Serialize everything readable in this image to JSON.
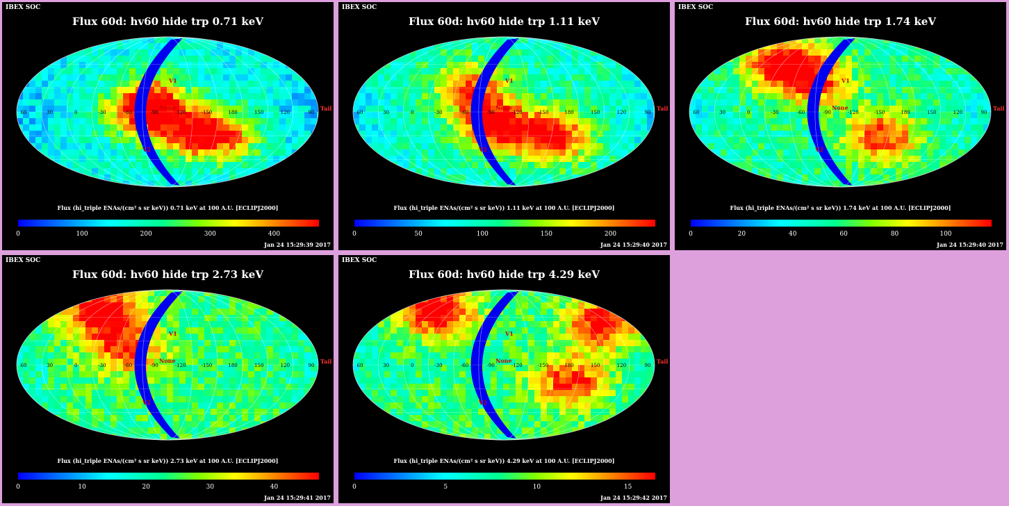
{
  "panels": [
    {
      "org": "IBEX SOC",
      "title": "Flux 60d: hv60 hide trp 0.71 keV",
      "colorbar_label": "Flux (hi_triple ENAs/(cm² s sr keV)) 0.71 keV at 100 A.U. [ECLIPJ2000]",
      "ticks": [
        "0",
        "100",
        "200",
        "300",
        "400"
      ],
      "tick_max": 470,
      "timestamp": "Jan 24 15:29:39 2017",
      "hotspots": [
        {
          "lon": -60,
          "lat": 0,
          "amp": 0.85
        },
        {
          "lon": -120,
          "lat": -25,
          "amp": 0.8
        },
        {
          "lon": -160,
          "lat": -30,
          "amp": 0.6
        },
        {
          "lon": -75,
          "lat": 20,
          "amp": 0.5
        }
      ],
      "base": 0.35
    },
    {
      "org": "IBEX SOC",
      "title": "Flux 60d: hv60 hide trp 1.11 keV",
      "colorbar_label": "Flux (hi_triple ENAs/(cm² s sr keV)) 1.11 keV at 100 A.U. [ECLIPJ2000]",
      "ticks": [
        "0",
        "50",
        "100",
        "150",
        "200"
      ],
      "tick_max": 235,
      "timestamp": "Jan 24 15:29:40 2017",
      "hotspots": [
        {
          "lon": -80,
          "lat": -15,
          "amp": 0.95
        },
        {
          "lon": -150,
          "lat": -30,
          "amp": 0.95
        },
        {
          "lon": -50,
          "lat": 30,
          "amp": 0.75
        }
      ],
      "base": 0.4
    },
    {
      "org": "IBEX SOC",
      "title": "Flux 60d: hv60 hide trp 1.74 keV",
      "colorbar_label": "Flux (hi_triple ENAs/(cm² s sr keV)) 1.74 keV at 100 A.U. [ECLIPJ2000]",
      "ticks": [
        "0",
        "20",
        "40",
        "60",
        "80",
        "100"
      ],
      "tick_max": 118,
      "timestamp": "Jan 24 15:29:40 2017",
      "hotspots": [
        {
          "lon": -20,
          "lat": 60,
          "amp": 0.9
        },
        {
          "lon": -140,
          "lat": -30,
          "amp": 0.75
        },
        {
          "lon": -60,
          "lat": 35,
          "amp": 0.7
        }
      ],
      "base": 0.45
    },
    {
      "org": "IBEX SOC",
      "title": "Flux 60d: hv60 hide trp 2.73 keV",
      "colorbar_label": "Flux (hi_triple ENAs/(cm² s sr keV)) 2.73 keV at 100 A.U. [ECLIPJ2000]",
      "ticks": [
        "0",
        "10",
        "20",
        "30",
        "40"
      ],
      "tick_max": 47,
      "timestamp": "Jan 24 15:29:41 2017",
      "hotspots": [
        {
          "lon": -10,
          "lat": 65,
          "amp": 0.9
        },
        {
          "lon": -40,
          "lat": 20,
          "amp": 0.65
        }
      ],
      "base": 0.5
    },
    {
      "org": "IBEX SOC",
      "title": "Flux 60d: hv60 hide trp 4.29 keV",
      "colorbar_label": "Flux (hi_triple ENAs/(cm² s sr keV)) 4.29 keV at 100 A.U. [ECLIPJ2000]",
      "ticks": [
        "0",
        "5",
        "10",
        "15"
      ],
      "tick_max": 16.5,
      "timestamp": "Jan 24 15:29:42 2017",
      "hotspots": [
        {
          "lon": -10,
          "lat": 65,
          "amp": 0.9
        },
        {
          "lon": 150,
          "lat": 50,
          "amp": 0.8
        },
        {
          "lon": -170,
          "lat": -20,
          "amp": 0.7
        }
      ],
      "base": 0.5
    }
  ],
  "map_labels": {
    "lon_labels": [
      "60",
      "30",
      "0",
      "-30",
      "-60",
      "-90",
      "-120",
      "-150",
      "180",
      "150",
      "120",
      "90"
    ],
    "markers": [
      "V1",
      "V2",
      "None",
      "Tail"
    ]
  }
}
